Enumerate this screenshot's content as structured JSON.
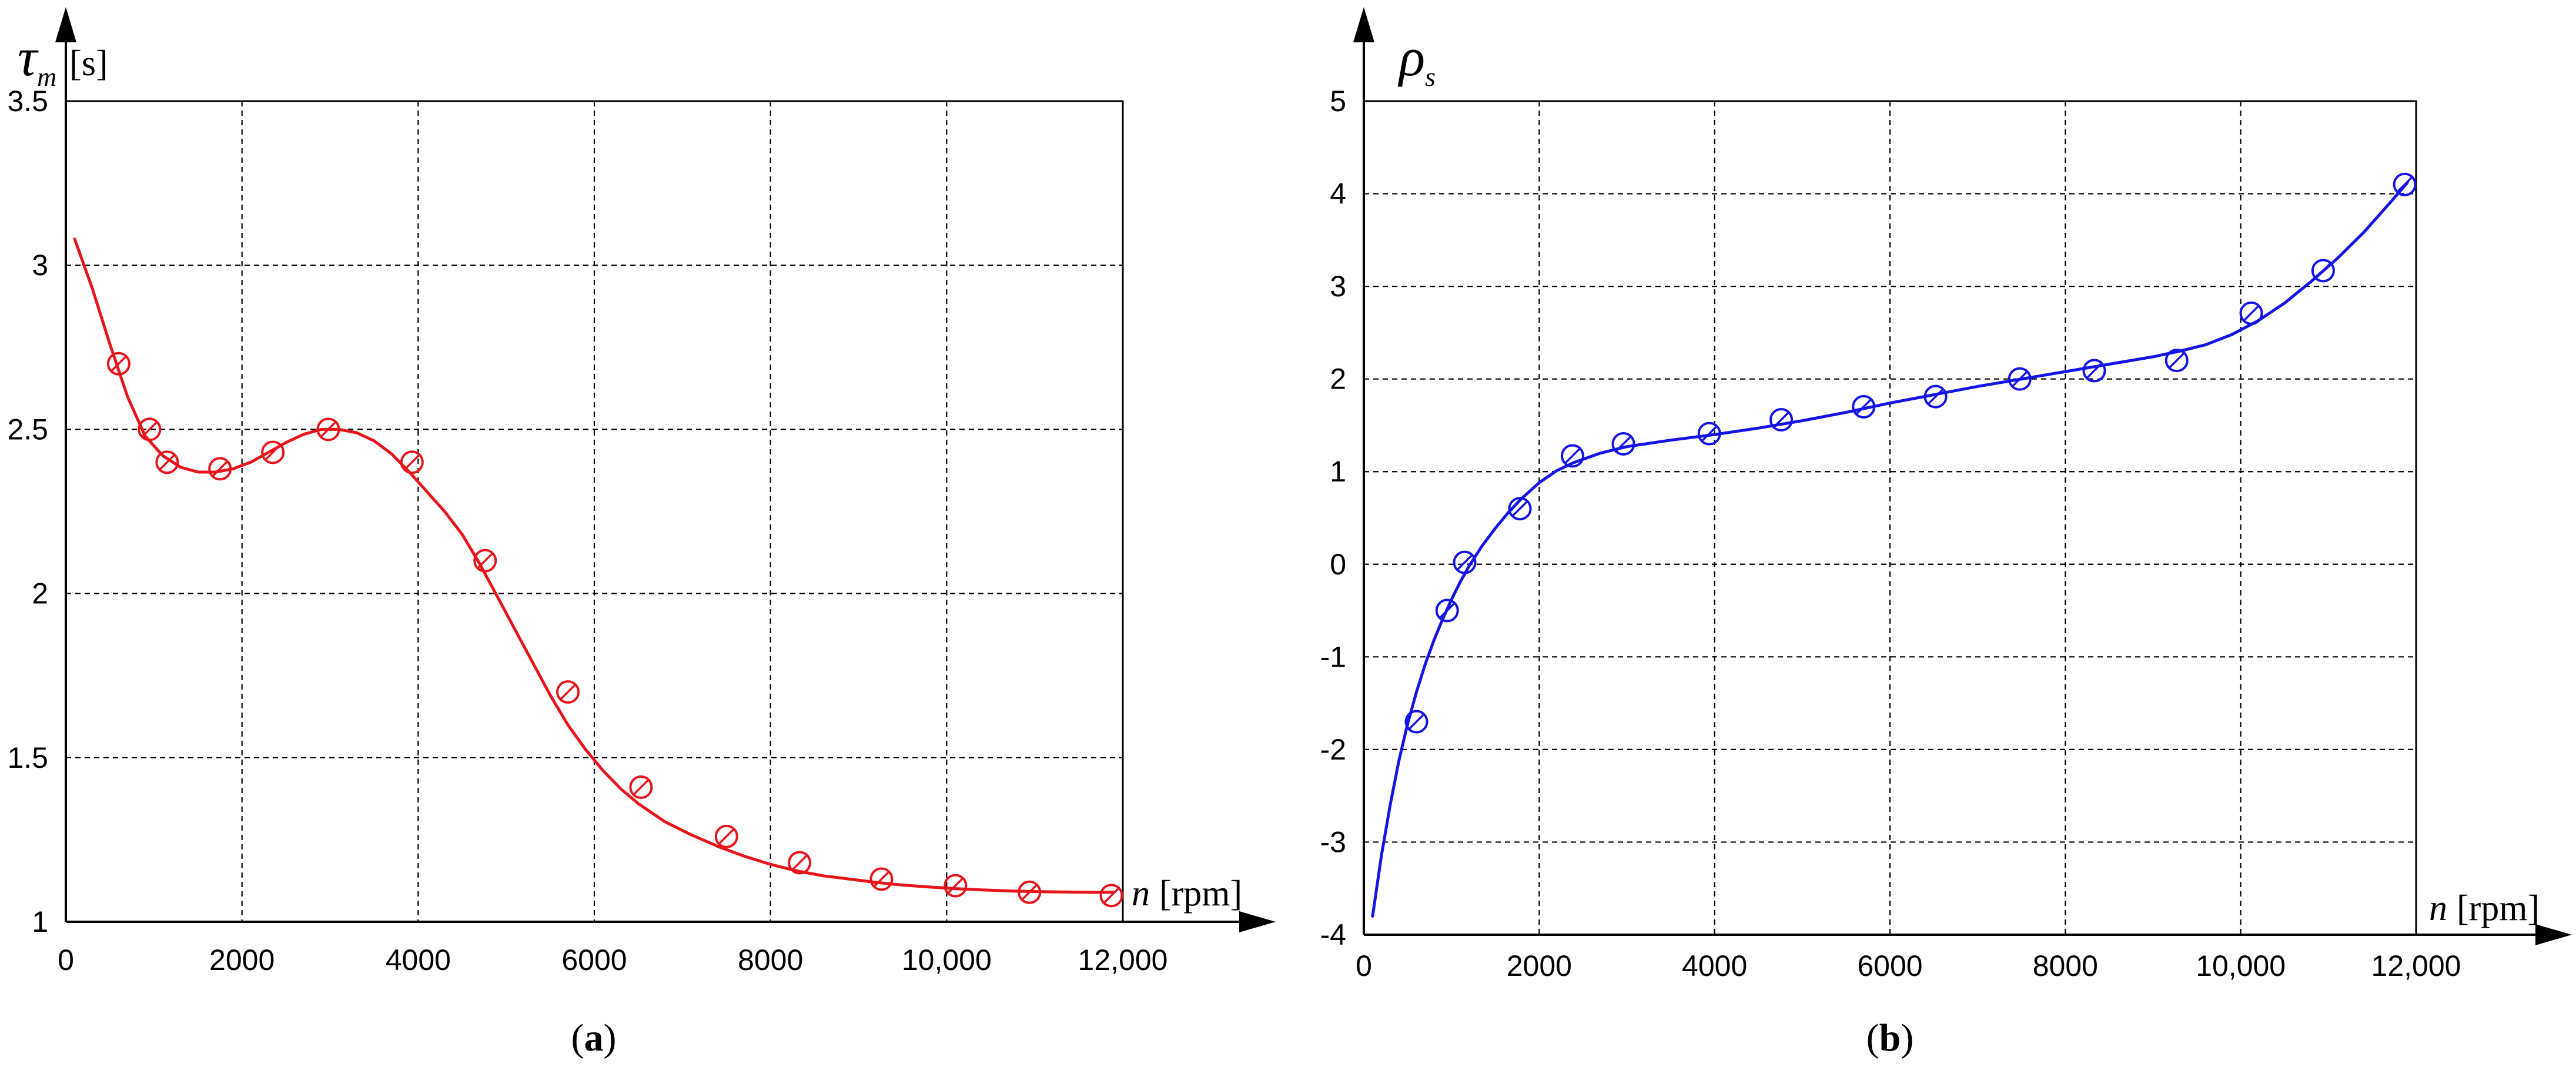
{
  "chart_data": [
    {
      "type": "line",
      "panel_label": "(a)",
      "panel_letter": "a",
      "ylabel": {
        "symbol": "τ",
        "subscript": "m",
        "unit": "[s]"
      },
      "xlabel": {
        "symbol": "n",
        "unit": "[rpm]"
      },
      "xlim": [
        0,
        12000
      ],
      "ylim": [
        1,
        3.5
      ],
      "xticks": [
        0,
        2000,
        4000,
        6000,
        8000,
        10000,
        12000
      ],
      "xtick_labels": [
        "0",
        "2000",
        "4000",
        "6000",
        "8000",
        "10,000",
        "12,000"
      ],
      "yticks": [
        1,
        1.5,
        2,
        2.5,
        3,
        3.5
      ],
      "ytick_labels": [
        "1",
        "1.5",
        "2",
        "2.5",
        "3",
        "3.5"
      ],
      "grid": true,
      "color": "#e8141c",
      "series": [
        {
          "kind": "fit-line",
          "x": [
            100,
            300,
            500,
            700,
            900,
            1100,
            1300,
            1500,
            1700,
            1900,
            2100,
            2300,
            2500,
            2700,
            2900,
            3100,
            3300,
            3500,
            3700,
            3900,
            4100,
            4300,
            4500,
            4700,
            4900,
            5100,
            5300,
            5500,
            5700,
            5900,
            6100,
            6300,
            6500,
            6800,
            7100,
            7400,
            7700,
            8000,
            8300,
            8600,
            8900,
            9200,
            9500,
            9800,
            10100,
            10400,
            10700,
            11000,
            11300,
            11600,
            11900
          ],
          "y": [
            3.08,
            2.93,
            2.76,
            2.6,
            2.48,
            2.42,
            2.385,
            2.37,
            2.37,
            2.38,
            2.4,
            2.43,
            2.46,
            2.485,
            2.5,
            2.5,
            2.49,
            2.465,
            2.425,
            2.37,
            2.31,
            2.25,
            2.18,
            2.09,
            1.99,
            1.89,
            1.79,
            1.69,
            1.6,
            1.525,
            1.46,
            1.405,
            1.36,
            1.305,
            1.265,
            1.23,
            1.2,
            1.175,
            1.155,
            1.14,
            1.13,
            1.12,
            1.112,
            1.106,
            1.101,
            1.097,
            1.094,
            1.092,
            1.091,
            1.09,
            1.09
          ]
        },
        {
          "kind": "markers",
          "x": [
            600,
            950,
            1150,
            1750,
            2350,
            2980,
            3930,
            4760,
            5700,
            6530,
            7500,
            8330,
            9260,
            10100,
            10940,
            11870
          ],
          "y": [
            2.7,
            2.5,
            2.4,
            2.38,
            2.43,
            2.5,
            2.4,
            2.1,
            1.7,
            1.41,
            1.26,
            1.18,
            1.13,
            1.11,
            1.09,
            1.08
          ]
        }
      ]
    },
    {
      "type": "line",
      "panel_label": "(b)",
      "panel_letter": "b",
      "ylabel": {
        "symbol": "ρ",
        "subscript": "s",
        "unit": ""
      },
      "xlabel": {
        "symbol": "n",
        "unit": "[rpm]"
      },
      "xlim": [
        0,
        12000
      ],
      "ylim": [
        -4,
        5
      ],
      "xticks": [
        0,
        2000,
        4000,
        6000,
        8000,
        10000,
        12000
      ],
      "xtick_labels": [
        "0",
        "2000",
        "4000",
        "6000",
        "8000",
        "10,000",
        "12,000"
      ],
      "yticks": [
        -4,
        -3,
        -2,
        -1,
        0,
        1,
        2,
        3,
        4,
        5
      ],
      "ytick_labels": [
        "-4",
        "-3",
        "-2",
        "-1",
        "0",
        "1",
        "2",
        "3",
        "4",
        "5"
      ],
      "grid": true,
      "color": "#1414e6",
      "series": [
        {
          "kind": "fit-line",
          "x": [
            100,
            200,
            300,
            400,
            500,
            600,
            700,
            800,
            900,
            1000,
            1100,
            1200,
            1350,
            1500,
            1650,
            1800,
            2000,
            2200,
            2400,
            2700,
            3000,
            3500,
            4000,
            4500,
            5000,
            5500,
            6000,
            6500,
            7000,
            7500,
            8000,
            8500,
            9000,
            9300,
            9600,
            9900,
            10200,
            10500,
            10800,
            11100,
            11400,
            11700,
            11900
          ],
          "y": [
            -3.8,
            -3.15,
            -2.6,
            -2.12,
            -1.72,
            -1.38,
            -1.08,
            -0.82,
            -0.59,
            -0.38,
            -0.19,
            -0.02,
            0.2,
            0.39,
            0.56,
            0.71,
            0.88,
            1.01,
            1.1,
            1.2,
            1.27,
            1.34,
            1.4,
            1.47,
            1.55,
            1.64,
            1.74,
            1.83,
            1.92,
            2.0,
            2.08,
            2.16,
            2.24,
            2.3,
            2.37,
            2.48,
            2.63,
            2.82,
            3.05,
            3.3,
            3.58,
            3.9,
            4.12
          ]
        },
        {
          "kind": "markers",
          "x": [
            600,
            950,
            1150,
            1780,
            2380,
            2960,
            3940,
            4760,
            5700,
            6520,
            7480,
            8330,
            9270,
            10120,
            10940,
            11870
          ],
          "y": [
            -1.7,
            -0.5,
            0.02,
            0.6,
            1.17,
            1.3,
            1.41,
            1.56,
            1.7,
            1.81,
            2.0,
            2.09,
            2.2,
            2.71,
            3.17,
            4.1
          ]
        }
      ]
    }
  ]
}
